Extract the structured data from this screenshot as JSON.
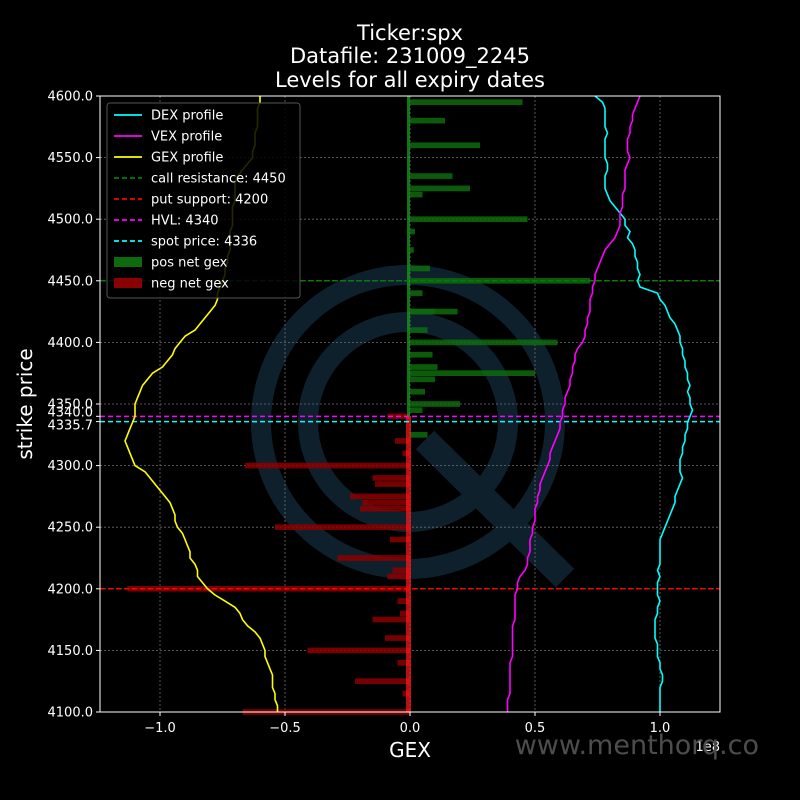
{
  "chart_data": {
    "type": "bar",
    "orientation": "horizontal",
    "title_lines": [
      "Ticker:spx",
      "Datafile: 231009_2245",
      "Levels for all expiry dates"
    ],
    "xlabel": "GEX",
    "ylabel": "strike price",
    "x_multiplier_label": "1e8",
    "xlim": [
      -1.24,
      1.24
    ],
    "ylim": [
      4100,
      4600
    ],
    "x_ticks": [
      -1.0,
      -0.5,
      0.0,
      0.5,
      1.0
    ],
    "x_tick_labels": [
      "−1.0",
      "−0.5",
      "0.0",
      "0.5",
      "1.0"
    ],
    "y_ticks": [
      4100,
      4150,
      4200,
      4250,
      4300,
      4350,
      4400,
      4450,
      4500,
      4550,
      4600
    ],
    "y_tick_labels": [
      "4100.0",
      "4150.0",
      "4200.0",
      "4250.0",
      "4300.0",
      "4350.0",
      "4400.0",
      "4450.0",
      "4500.0",
      "4550.0",
      "4600.0"
    ],
    "extra_y_ticks": [
      {
        "value": 4340,
        "label": "4340.0"
      },
      {
        "value": 4335.7,
        "label": "4335.7"
      }
    ],
    "grid": true,
    "legend_position": "upper left",
    "legend": [
      {
        "label": "DEX profile",
        "kind": "line",
        "color": "#00ffff",
        "dash": false
      },
      {
        "label": "VEX profile",
        "kind": "line",
        "color": "#ff00ff",
        "dash": false
      },
      {
        "label": "GEX profile",
        "kind": "line",
        "color": "#ffff00",
        "dash": false
      },
      {
        "label": "call resistance: 4450",
        "kind": "line",
        "color": "#008000",
        "dash": true
      },
      {
        "label": "put support: 4200",
        "kind": "line",
        "color": "#ff0000",
        "dash": true
      },
      {
        "label": "HVL: 4340",
        "kind": "line",
        "color": "#ff00ff",
        "dash": true
      },
      {
        "label": "spot price: 4336",
        "kind": "line",
        "color": "#00ffff",
        "dash": true
      },
      {
        "label": "pos net gex",
        "kind": "patch",
        "color": "#0d6b0d"
      },
      {
        "label": "neg net gex",
        "kind": "patch",
        "color": "#8b0000"
      }
    ],
    "hlines": [
      {
        "name": "call resistance",
        "y": 4450,
        "color": "#008000"
      },
      {
        "name": "put support",
        "y": 4200,
        "color": "#ff0000"
      },
      {
        "name": "HVL",
        "y": 4340,
        "color": "#ff00ff"
      },
      {
        "name": "spot price",
        "y": 4335.7,
        "color": "#00ffff"
      }
    ],
    "bars_pos": [
      {
        "strike": 4595,
        "value": 0.45
      },
      {
        "strike": 4580,
        "value": 0.14
      },
      {
        "strike": 4560,
        "value": 0.28
      },
      {
        "strike": 4535,
        "value": 0.17
      },
      {
        "strike": 4525,
        "value": 0.24
      },
      {
        "strike": 4520,
        "value": 0.05
      },
      {
        "strike": 4500,
        "value": 0.47
      },
      {
        "strike": 4490,
        "value": 0.02
      },
      {
        "strike": 4475,
        "value": 0.015
      },
      {
        "strike": 4460,
        "value": 0.08
      },
      {
        "strike": 4450,
        "value": 0.72
      },
      {
        "strike": 4440,
        "value": 0.05
      },
      {
        "strike": 4425,
        "value": 0.1
      },
      {
        "strike": 4425,
        "value": 0.19
      },
      {
        "strike": 4410,
        "value": 0.07
      },
      {
        "strike": 4400,
        "value": 0.59
      },
      {
        "strike": 4390,
        "value": 0.09
      },
      {
        "strike": 4380,
        "value": 0.11
      },
      {
        "strike": 4375,
        "value": 0.5
      },
      {
        "strike": 4370,
        "value": 0.1
      },
      {
        "strike": 4360,
        "value": 0.06
      },
      {
        "strike": 4350,
        "value": 0.2
      },
      {
        "strike": 4345,
        "value": 0.05
      },
      {
        "strike": 4325,
        "value": 0.07
      }
    ],
    "bars_neg": [
      {
        "strike": 4340,
        "value": -0.09
      },
      {
        "strike": 4320,
        "value": -0.06
      },
      {
        "strike": 4310,
        "value": -0.03
      },
      {
        "strike": 4300,
        "value": -0.66
      },
      {
        "strike": 4290,
        "value": -0.15
      },
      {
        "strike": 4285,
        "value": -0.14
      },
      {
        "strike": 4275,
        "value": -0.24
      },
      {
        "strike": 4270,
        "value": -0.19
      },
      {
        "strike": 4265,
        "value": -0.2
      },
      {
        "strike": 4250,
        "value": -0.54
      },
      {
        "strike": 4240,
        "value": -0.08
      },
      {
        "strike": 4225,
        "value": -0.29
      },
      {
        "strike": 4215,
        "value": -0.07
      },
      {
        "strike": 4210,
        "value": -0.09
      },
      {
        "strike": 4200,
        "value": -1.13
      },
      {
        "strike": 4190,
        "value": -0.05
      },
      {
        "strike": 4180,
        "value": -0.04
      },
      {
        "strike": 4175,
        "value": -0.15
      },
      {
        "strike": 4160,
        "value": -0.1
      },
      {
        "strike": 4150,
        "value": -0.41
      },
      {
        "strike": 4140,
        "value": -0.05
      },
      {
        "strike": 4125,
        "value": -0.22
      },
      {
        "strike": 4115,
        "value": -0.03
      },
      {
        "strike": 4100,
        "value": -0.67
      }
    ],
    "series": [
      {
        "name": "DEX profile",
        "color": "#00ffff",
        "x": [
          0.74,
          0.77,
          0.78,
          0.78,
          0.78,
          0.78,
          0.79,
          0.78,
          0.78,
          0.78,
          0.78,
          0.79,
          0.79,
          0.78,
          0.78,
          0.78,
          0.79,
          0.8,
          0.82,
          0.84,
          0.86,
          0.86,
          0.88,
          0.87,
          0.89,
          0.9,
          0.9,
          0.91,
          0.91,
          0.92,
          0.91,
          0.92,
          0.99,
          1.0,
          1.02,
          1.03,
          1.04,
          1.06,
          1.07,
          1.08,
          1.08,
          1.09,
          1.09,
          1.1,
          1.1,
          1.11,
          1.11,
          1.12,
          1.11,
          1.12,
          1.12,
          1.13,
          1.12,
          1.11,
          1.11,
          1.1,
          1.1,
          1.09,
          1.09,
          1.08,
          1.08,
          1.08,
          1.09,
          1.08,
          1.07,
          1.06,
          1.06,
          1.05,
          1.04,
          1.03,
          1.02,
          1.01,
          1.0,
          1.0,
          1.0,
          1.0,
          1.0,
          0.99,
          1.0,
          0.99,
          0.99,
          0.99,
          1.0,
          0.99,
          0.99,
          0.98,
          0.98,
          0.98,
          0.98,
          0.99,
          0.99,
          0.99,
          1.0,
          1.0,
          1.01,
          1.01,
          1.0,
          1.0,
          1.0,
          1.0,
          1.0
        ],
        "y": [
          4600,
          4595,
          4590,
          4585,
          4580,
          4575,
          4570,
          4565,
          4560,
          4555,
          4550,
          4545,
          4540,
          4535,
          4530,
          4525,
          4520,
          4515,
          4510,
          4505,
          4500,
          4495,
          4490,
          4485,
          4480,
          4475,
          4470,
          4465,
          4460,
          4455,
          4450,
          4445,
          4440,
          4435,
          4430,
          4425,
          4420,
          4415,
          4410,
          4405,
          4400,
          4395,
          4390,
          4385,
          4380,
          4375,
          4370,
          4365,
          4360,
          4355,
          4350,
          4345,
          4340,
          4335,
          4330,
          4325,
          4320,
          4315,
          4310,
          4305,
          4300,
          4295,
          4290,
          4285,
          4280,
          4275,
          4270,
          4265,
          4260,
          4255,
          4250,
          4245,
          4240,
          4235,
          4230,
          4225,
          4220,
          4215,
          4210,
          4205,
          4200,
          4195,
          4190,
          4185,
          4180,
          4175,
          4170,
          4165,
          4160,
          4155,
          4150,
          4145,
          4140,
          4135,
          4130,
          4125,
          4120,
          4115,
          4110,
          4105,
          4100
        ]
      },
      {
        "name": "VEX profile",
        "color": "#ff00ff",
        "x": [
          0.92,
          0.91,
          0.9,
          0.89,
          0.89,
          0.88,
          0.88,
          0.87,
          0.87,
          0.87,
          0.88,
          0.87,
          0.86,
          0.86,
          0.86,
          0.86,
          0.85,
          0.85,
          0.85,
          0.84,
          0.84,
          0.84,
          0.83,
          0.82,
          0.8,
          0.78,
          0.77,
          0.76,
          0.75,
          0.74,
          0.74,
          0.73,
          0.73,
          0.72,
          0.72,
          0.72,
          0.71,
          0.71,
          0.7,
          0.7,
          0.69,
          0.67,
          0.66,
          0.66,
          0.65,
          0.65,
          0.64,
          0.64,
          0.63,
          0.62,
          0.62,
          0.61,
          0.61,
          0.6,
          0.6,
          0.59,
          0.58,
          0.57,
          0.56,
          0.56,
          0.55,
          0.54,
          0.53,
          0.52,
          0.52,
          0.51,
          0.51,
          0.5,
          0.5,
          0.5,
          0.49,
          0.49,
          0.48,
          0.48,
          0.48,
          0.47,
          0.47,
          0.46,
          0.44,
          0.43,
          0.43,
          0.42,
          0.42,
          0.42,
          0.42,
          0.42,
          0.41,
          0.41,
          0.41,
          0.41,
          0.41,
          0.41,
          0.4,
          0.4,
          0.4,
          0.4,
          0.4,
          0.4,
          0.39,
          0.39,
          0.39
        ],
        "y": [
          4600,
          4595,
          4590,
          4585,
          4580,
          4575,
          4570,
          4565,
          4560,
          4555,
          4550,
          4545,
          4540,
          4535,
          4530,
          4525,
          4520,
          4515,
          4510,
          4505,
          4500,
          4495,
          4490,
          4485,
          4480,
          4475,
          4470,
          4465,
          4460,
          4455,
          4450,
          4445,
          4440,
          4435,
          4430,
          4425,
          4420,
          4415,
          4410,
          4405,
          4400,
          4395,
          4390,
          4385,
          4380,
          4375,
          4370,
          4365,
          4360,
          4355,
          4350,
          4345,
          4340,
          4335,
          4330,
          4325,
          4320,
          4315,
          4310,
          4305,
          4300,
          4295,
          4290,
          4285,
          4280,
          4275,
          4270,
          4265,
          4260,
          4255,
          4250,
          4245,
          4240,
          4235,
          4230,
          4225,
          4220,
          4215,
          4210,
          4205,
          4200,
          4195,
          4190,
          4185,
          4180,
          4175,
          4170,
          4165,
          4160,
          4155,
          4150,
          4145,
          4140,
          4135,
          4130,
          4125,
          4120,
          4115,
          4110,
          4105,
          4100
        ]
      },
      {
        "name": "GEX profile",
        "color": "#ffff00",
        "x": [
          -0.6,
          -0.6,
          -0.61,
          -0.61,
          -0.61,
          -0.61,
          -0.62,
          -0.62,
          -0.62,
          -0.63,
          -0.63,
          -0.65,
          -0.67,
          -0.69,
          -0.7,
          -0.7,
          -0.7,
          -0.7,
          -0.71,
          -0.71,
          -0.71,
          -0.71,
          -0.72,
          -0.72,
          -0.72,
          -0.72,
          -0.73,
          -0.73,
          -0.74,
          -0.74,
          -0.75,
          -0.76,
          -0.77,
          -0.77,
          -0.78,
          -0.8,
          -0.82,
          -0.84,
          -0.86,
          -0.9,
          -0.92,
          -0.94,
          -0.95,
          -0.97,
          -0.99,
          -1.03,
          -1.05,
          -1.07,
          -1.08,
          -1.09,
          -1.1,
          -1.1,
          -1.1,
          -1.11,
          -1.12,
          -1.13,
          -1.14,
          -1.13,
          -1.12,
          -1.11,
          -1.1,
          -1.06,
          -1.04,
          -1.02,
          -1.0,
          -0.98,
          -0.96,
          -0.95,
          -0.94,
          -0.94,
          -0.93,
          -0.91,
          -0.9,
          -0.89,
          -0.88,
          -0.88,
          -0.86,
          -0.85,
          -0.85,
          -0.83,
          -0.81,
          -0.78,
          -0.74,
          -0.7,
          -0.68,
          -0.67,
          -0.65,
          -0.62,
          -0.6,
          -0.59,
          -0.58,
          -0.58,
          -0.57,
          -0.56,
          -0.55,
          -0.55,
          -0.55,
          -0.54,
          -0.54,
          -0.53,
          -0.53
        ],
        "y": [
          4600,
          4595,
          4590,
          4585,
          4580,
          4575,
          4570,
          4565,
          4560,
          4555,
          4550,
          4545,
          4540,
          4535,
          4530,
          4525,
          4520,
          4515,
          4510,
          4505,
          4500,
          4495,
          4490,
          4485,
          4480,
          4475,
          4470,
          4465,
          4460,
          4455,
          4450,
          4445,
          4440,
          4435,
          4430,
          4425,
          4420,
          4415,
          4410,
          4405,
          4400,
          4395,
          4390,
          4385,
          4380,
          4375,
          4370,
          4365,
          4360,
          4355,
          4350,
          4345,
          4340,
          4335,
          4330,
          4325,
          4320,
          4315,
          4310,
          4305,
          4300,
          4295,
          4290,
          4285,
          4280,
          4275,
          4270,
          4265,
          4260,
          4255,
          4250,
          4245,
          4240,
          4235,
          4230,
          4225,
          4220,
          4215,
          4210,
          4205,
          4200,
          4195,
          4190,
          4185,
          4180,
          4175,
          4170,
          4165,
          4160,
          4155,
          4150,
          4145,
          4140,
          4135,
          4130,
          4125,
          4120,
          4115,
          4110,
          4105,
          4100
        ]
      }
    ]
  },
  "watermark": {
    "text": "www.menthorq.co",
    "logo_color": "#1c3b52"
  },
  "colors": {
    "background": "#000000",
    "axes": "#ffffff",
    "grid": "#6e6e6e",
    "pos_bar": "#0d6b0d",
    "neg_bar": "#8b0000"
  }
}
